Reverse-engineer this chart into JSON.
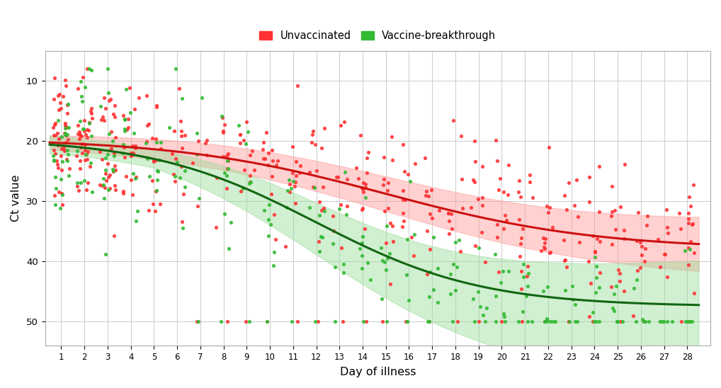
{
  "xlabel": "Day of illness",
  "ylabel": "Ct value",
  "legend_labels": [
    "Unvaccinated",
    "Vaccine-breakthrough"
  ],
  "unvacc_color": "#FF3333",
  "vacc_color": "#33BB33",
  "unvacc_line_color": "#CC1111",
  "vacc_line_color": "#116611",
  "unvacc_ribbon_color": "#FF9999",
  "vacc_ribbon_color": "#99DD99",
  "ylim": [
    54,
    5
  ],
  "xlim": [
    0.3,
    29
  ],
  "xticks": [
    1,
    2,
    3,
    4,
    5,
    6,
    7,
    8,
    9,
    10,
    11,
    12,
    13,
    14,
    15,
    16,
    17,
    18,
    19,
    20,
    21,
    22,
    23,
    24,
    25,
    26,
    27,
    28
  ],
  "yticks": [
    10,
    20,
    30,
    40,
    50
  ],
  "background_color": "#FFFFFF",
  "grid_color": "#CCCCCC",
  "dot_size": 14,
  "dot_alpha": 0.9
}
